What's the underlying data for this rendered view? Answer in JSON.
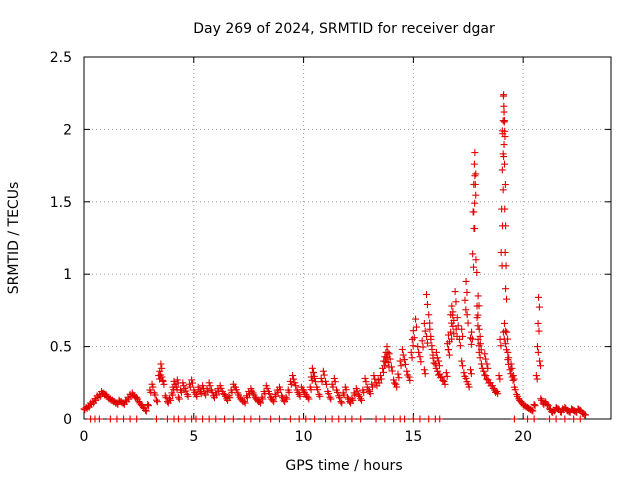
{
  "chart_data": {
    "type": "scatter",
    "title": "Day 269 of 2024, SRMTID for receiver dgar",
    "xlabel": "GPS time / hours",
    "ylabel": "SRMTID / TECUs",
    "xlim": [
      0,
      24
    ],
    "ylim": [
      0,
      2.5
    ],
    "xticks": [
      0,
      5,
      10,
      15,
      20
    ],
    "xtick_labels": [
      "0",
      "5",
      "10",
      "15",
      "20"
    ],
    "yticks": [
      0,
      0.5,
      1,
      1.5,
      2,
      2.5
    ],
    "ytick_labels": [
      "0",
      "0.5",
      "1",
      "1.5",
      "2",
      "2.5"
    ],
    "grid": true,
    "marker": "plus",
    "series_color": "#e00000",
    "series": [
      {
        "name": "SRMTID",
        "points": [
          [
            0.0,
            0.07
          ],
          [
            0.1,
            0.08
          ],
          [
            0.2,
            0.09
          ],
          [
            0.3,
            0.11
          ],
          [
            0.4,
            0.12
          ],
          [
            0.5,
            0.14
          ],
          [
            0.6,
            0.16
          ],
          [
            0.7,
            0.17
          ],
          [
            0.8,
            0.19
          ],
          [
            0.9,
            0.18
          ],
          [
            1.0,
            0.17
          ],
          [
            1.1,
            0.15
          ],
          [
            1.2,
            0.14
          ],
          [
            1.3,
            0.13
          ],
          [
            1.4,
            0.12
          ],
          [
            1.5,
            0.11
          ],
          [
            1.6,
            0.13
          ],
          [
            1.7,
            0.12
          ],
          [
            1.8,
            0.11
          ],
          [
            1.9,
            0.13
          ],
          [
            2.0,
            0.15
          ],
          [
            2.1,
            0.17
          ],
          [
            2.2,
            0.18
          ],
          [
            2.3,
            0.16
          ],
          [
            2.4,
            0.15
          ],
          [
            2.5,
            0.12
          ],
          [
            2.6,
            0.1
          ],
          [
            2.7,
            0.08
          ],
          [
            2.8,
            0.06
          ],
          [
            2.9,
            0.1
          ],
          [
            3.0,
            0.2
          ],
          [
            3.1,
            0.24
          ],
          [
            3.2,
            0.18
          ],
          [
            3.3,
            0.13
          ],
          [
            3.4,
            0.3
          ],
          [
            3.5,
            0.38
          ],
          [
            3.6,
            0.26
          ],
          [
            3.7,
            0.16
          ],
          [
            3.8,
            0.12
          ],
          [
            3.9,
            0.14
          ],
          [
            4.0,
            0.18
          ],
          [
            4.1,
            0.26
          ],
          [
            4.2,
            0.22
          ],
          [
            4.3,
            0.15
          ],
          [
            4.4,
            0.2
          ],
          [
            4.5,
            0.25
          ],
          [
            4.6,
            0.21
          ],
          [
            4.7,
            0.17
          ],
          [
            4.8,
            0.24
          ],
          [
            4.9,
            0.27
          ],
          [
            5.0,
            0.2
          ],
          [
            5.1,
            0.17
          ],
          [
            5.2,
            0.22
          ],
          [
            5.3,
            0.19
          ],
          [
            5.4,
            0.23
          ],
          [
            5.5,
            0.18
          ],
          [
            5.6,
            0.21
          ],
          [
            5.7,
            0.25
          ],
          [
            5.8,
            0.2
          ],
          [
            5.9,
            0.16
          ],
          [
            6.0,
            0.18
          ],
          [
            6.1,
            0.21
          ],
          [
            6.2,
            0.23
          ],
          [
            6.3,
            0.19
          ],
          [
            6.4,
            0.17
          ],
          [
            6.5,
            0.14
          ],
          [
            6.6,
            0.16
          ],
          [
            6.7,
            0.2
          ],
          [
            6.8,
            0.24
          ],
          [
            6.9,
            0.22
          ],
          [
            7.0,
            0.18
          ],
          [
            7.1,
            0.15
          ],
          [
            7.2,
            0.13
          ],
          [
            7.3,
            0.12
          ],
          [
            7.4,
            0.16
          ],
          [
            7.5,
            0.19
          ],
          [
            7.6,
            0.21
          ],
          [
            7.7,
            0.18
          ],
          [
            7.8,
            0.15
          ],
          [
            7.9,
            0.13
          ],
          [
            8.0,
            0.12
          ],
          [
            8.1,
            0.15
          ],
          [
            8.2,
            0.19
          ],
          [
            8.3,
            0.23
          ],
          [
            8.4,
            0.19
          ],
          [
            8.5,
            0.15
          ],
          [
            8.6,
            0.13
          ],
          [
            8.7,
            0.17
          ],
          [
            8.8,
            0.2
          ],
          [
            8.9,
            0.22
          ],
          [
            9.0,
            0.16
          ],
          [
            9.1,
            0.13
          ],
          [
            9.2,
            0.15
          ],
          [
            9.3,
            0.2
          ],
          [
            9.4,
            0.26
          ],
          [
            9.5,
            0.3
          ],
          [
            9.6,
            0.25
          ],
          [
            9.7,
            0.2
          ],
          [
            9.8,
            0.17
          ],
          [
            9.9,
            0.22
          ],
          [
            10.0,
            0.2
          ],
          [
            10.1,
            0.17
          ],
          [
            10.2,
            0.15
          ],
          [
            10.3,
            0.22
          ],
          [
            10.4,
            0.35
          ],
          [
            10.5,
            0.28
          ],
          [
            10.6,
            0.22
          ],
          [
            10.7,
            0.17
          ],
          [
            10.8,
            0.28
          ],
          [
            10.9,
            0.33
          ],
          [
            11.0,
            0.26
          ],
          [
            11.1,
            0.19
          ],
          [
            11.2,
            0.15
          ],
          [
            11.3,
            0.24
          ],
          [
            11.4,
            0.28
          ],
          [
            11.5,
            0.2
          ],
          [
            11.6,
            0.16
          ],
          [
            11.7,
            0.12
          ],
          [
            11.8,
            0.18
          ],
          [
            11.9,
            0.22
          ],
          [
            12.0,
            0.15
          ],
          [
            12.1,
            0.12
          ],
          [
            12.2,
            0.14
          ],
          [
            12.3,
            0.18
          ],
          [
            12.4,
            0.21
          ],
          [
            12.5,
            0.17
          ],
          [
            12.6,
            0.14
          ],
          [
            12.7,
            0.2
          ],
          [
            12.8,
            0.28
          ],
          [
            12.9,
            0.22
          ],
          [
            13.0,
            0.19
          ],
          [
            13.1,
            0.24
          ],
          [
            13.2,
            0.3
          ],
          [
            13.3,
            0.25
          ],
          [
            13.4,
            0.27
          ],
          [
            13.5,
            0.3
          ],
          [
            13.6,
            0.35
          ],
          [
            13.7,
            0.43
          ],
          [
            13.8,
            0.5
          ],
          [
            13.9,
            0.45
          ],
          [
            14.0,
            0.36
          ],
          [
            14.1,
            0.27
          ],
          [
            14.2,
            0.24
          ],
          [
            14.3,
            0.31
          ],
          [
            14.4,
            0.4
          ],
          [
            14.5,
            0.48
          ],
          [
            14.6,
            0.41
          ],
          [
            14.7,
            0.33
          ],
          [
            14.8,
            0.29
          ],
          [
            14.9,
            0.46
          ],
          [
            15.0,
            0.61
          ],
          [
            15.1,
            0.69
          ],
          [
            15.2,
            0.5
          ],
          [
            15.3,
            0.43
          ],
          [
            15.4,
            0.54
          ],
          [
            15.5,
            0.66
          ],
          [
            15.6,
            0.86
          ],
          [
            15.7,
            0.72
          ],
          [
            15.8,
            0.55
          ],
          [
            15.9,
            0.42
          ],
          [
            16.0,
            0.38
          ],
          [
            16.1,
            0.33
          ],
          [
            16.2,
            0.31
          ],
          [
            16.3,
            0.29
          ],
          [
            16.4,
            0.26
          ],
          [
            16.5,
            0.32
          ],
          [
            16.6,
            0.48
          ],
          [
            16.7,
            0.6
          ],
          [
            16.8,
            0.74
          ],
          [
            16.9,
            0.88
          ],
          [
            17.0,
            0.7
          ],
          [
            17.1,
            0.55
          ],
          [
            17.2,
            0.4
          ],
          [
            17.3,
            0.32
          ],
          [
            17.4,
            0.28
          ],
          [
            17.5,
            0.24
          ],
          [
            17.6,
            0.34
          ],
          [
            17.7,
            1.14
          ],
          [
            17.72,
            1.43
          ],
          [
            17.75,
            1.62
          ],
          [
            17.78,
            1.76
          ],
          [
            17.8,
            1.84
          ],
          [
            17.85,
            1.1
          ],
          [
            17.9,
            0.7
          ],
          [
            17.95,
            0.55
          ],
          [
            18.0,
            0.46
          ],
          [
            18.1,
            0.38
          ],
          [
            18.2,
            0.33
          ],
          [
            18.3,
            0.3
          ],
          [
            18.4,
            0.27
          ],
          [
            18.5,
            0.25
          ],
          [
            18.6,
            0.23
          ],
          [
            18.7,
            0.2
          ],
          [
            18.8,
            0.19
          ],
          [
            18.9,
            0.3
          ],
          [
            18.95,
            0.55
          ],
          [
            19.0,
            1.15
          ],
          [
            19.02,
            1.45
          ],
          [
            19.05,
            1.72
          ],
          [
            19.07,
            1.97
          ],
          [
            19.09,
            2.06
          ],
          [
            19.11,
            2.24
          ],
          [
            19.13,
            2.12
          ],
          [
            19.15,
            1.76
          ],
          [
            19.2,
            0.9
          ],
          [
            19.25,
            0.6
          ],
          [
            19.3,
            0.41
          ],
          [
            19.4,
            0.34
          ],
          [
            19.5,
            0.29
          ],
          [
            19.6,
            0.22
          ],
          [
            19.7,
            0.17
          ],
          [
            19.8,
            0.14
          ],
          [
            19.9,
            0.12
          ],
          [
            20.0,
            0.1
          ],
          [
            20.1,
            0.09
          ],
          [
            20.2,
            0.08
          ],
          [
            20.3,
            0.07
          ],
          [
            20.4,
            0.06
          ],
          [
            20.5,
            0.1
          ],
          [
            20.6,
            0.3
          ],
          [
            20.65,
            0.5
          ],
          [
            20.68,
            0.66
          ],
          [
            20.7,
            0.84
          ],
          [
            20.75,
            0.4
          ],
          [
            20.8,
            0.14
          ],
          [
            20.9,
            0.11
          ],
          [
            21.0,
            0.12
          ],
          [
            21.1,
            0.1
          ],
          [
            21.2,
            0.07
          ],
          [
            21.3,
            0.05
          ],
          [
            21.4,
            0.06
          ],
          [
            21.5,
            0.08
          ],
          [
            21.6,
            0.07
          ],
          [
            21.7,
            0.05
          ],
          [
            21.8,
            0.07
          ],
          [
            21.9,
            0.08
          ],
          [
            22.0,
            0.06
          ],
          [
            22.1,
            0.05
          ],
          [
            22.2,
            0.07
          ],
          [
            22.3,
            0.06
          ],
          [
            22.4,
            0.05
          ],
          [
            22.5,
            0.07
          ],
          [
            22.6,
            0.06
          ],
          [
            22.7,
            0.04
          ],
          [
            22.8,
            0.03
          ],
          [
            17.2,
            0.62
          ],
          [
            17.35,
            0.82
          ],
          [
            17.4,
            0.95
          ],
          [
            17.45,
            0.72
          ],
          [
            17.6,
            0.56
          ],
          [
            17.65,
            0.6
          ],
          [
            17.9,
            0.78
          ],
          [
            17.95,
            0.85
          ],
          [
            18.0,
            0.62
          ],
          [
            18.05,
            0.52
          ],
          [
            19.1,
            0.6
          ],
          [
            19.15,
            0.66
          ],
          [
            19.2,
            0.52
          ],
          [
            19.3,
            0.46
          ],
          [
            16.55,
            0.52
          ],
          [
            16.6,
            0.58
          ],
          [
            16.7,
            0.72
          ],
          [
            16.75,
            0.78
          ],
          [
            16.8,
            0.64
          ],
          [
            16.95,
            0.62
          ],
          [
            15.5,
            0.34
          ],
          [
            15.6,
            0.57
          ],
          [
            15.75,
            0.62
          ],
          [
            15.85,
            0.48
          ],
          [
            16.05,
            0.46
          ],
          [
            16.15,
            0.4
          ],
          [
            18.25,
            0.45
          ],
          [
            18.35,
            0.38
          ],
          [
            19.45,
            0.38
          ],
          [
            19.55,
            0.3
          ],
          [
            3.45,
            0.33
          ],
          [
            3.55,
            0.29
          ],
          [
            4.05,
            0.22
          ],
          [
            4.25,
            0.27
          ],
          [
            10.35,
            0.29
          ],
          [
            10.45,
            0.32
          ],
          [
            13.65,
            0.4
          ],
          [
            13.75,
            0.46
          ],
          [
            13.85,
            0.39
          ],
          [
            14.95,
            0.55
          ],
          [
            17.75,
            1.43
          ],
          [
            17.8,
            1.68
          ],
          [
            19.05,
            1.99
          ],
          [
            19.1,
            2.23
          ],
          [
            19.12,
            2.16
          ],
          [
            19.16,
            1.45
          ],
          [
            19.18,
            1.15
          ]
        ]
      },
      {
        "name": "zero-values",
        "xs": [
          0.3,
          0.5,
          0.7,
          1.2,
          1.5,
          1.8,
          2.1,
          2.4,
          3.3,
          3.8,
          4.1,
          4.3,
          4.6,
          4.9,
          5.1,
          5.4,
          5.7,
          6.0,
          6.4,
          6.8,
          7.3,
          7.6,
          8.0,
          8.5,
          8.9,
          9.4,
          9.8,
          10.1,
          10.5,
          11.0,
          11.3,
          11.6,
          11.9,
          12.2,
          12.6,
          13.3,
          13.7,
          14.1,
          14.4,
          14.6,
          15.0,
          15.3,
          15.7,
          16.0,
          16.2,
          19.6,
          20.2,
          20.5,
          21.2,
          21.5,
          21.9,
          22.3,
          22.6
        ],
        "y": 0
      }
    ]
  }
}
